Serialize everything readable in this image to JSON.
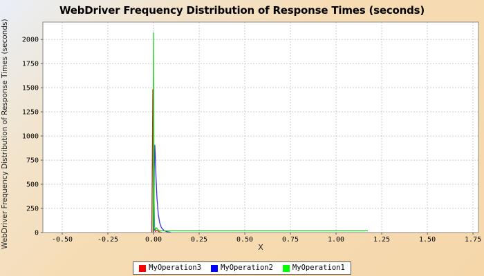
{
  "chart_data": {
    "type": "line",
    "title": "WebDriver Frequency Distribution of Response Times (seconds)",
    "xlabel": "X",
    "ylabel": "WebDriver Frequency Distribution of Response Times (seconds)",
    "xlim": [
      -0.606,
      1.78
    ],
    "ylim": [
      0,
      2180
    ],
    "grid": true,
    "grid_color": "#cccccc",
    "plot_background": "#ffffff",
    "plot_border_color": "#888888",
    "tick_color": "#555555",
    "x_ticks": [
      {
        "v": -0.5,
        "label": "-0.50"
      },
      {
        "v": -0.25,
        "label": "-0.25"
      },
      {
        "v": 0.0,
        "label": "0.00"
      },
      {
        "v": 0.25,
        "label": "0.25"
      },
      {
        "v": 0.5,
        "label": "0.50"
      },
      {
        "v": 0.75,
        "label": "0.75"
      },
      {
        "v": 1.0,
        "label": "1.00"
      },
      {
        "v": 1.25,
        "label": "1.25"
      },
      {
        "v": 1.5,
        "label": "1.50"
      },
      {
        "v": 1.75,
        "label": "1.75"
      }
    ],
    "y_ticks": [
      {
        "v": 0,
        "label": "0"
      },
      {
        "v": 250,
        "label": "250"
      },
      {
        "v": 500,
        "label": "500"
      },
      {
        "v": 750,
        "label": "750"
      },
      {
        "v": 1000,
        "label": "1000"
      },
      {
        "v": 1250,
        "label": "1250"
      },
      {
        "v": 1500,
        "label": "1500"
      },
      {
        "v": 1750,
        "label": "1750"
      },
      {
        "v": 2000,
        "label": "2000"
      }
    ],
    "legend": {
      "position": "bottom",
      "items": [
        {
          "label": "MyOperation3",
          "color": "#ff0000"
        },
        {
          "label": "MyOperation2",
          "color": "#0000ff"
        },
        {
          "label": "MyOperation1",
          "color": "#00ff00"
        }
      ]
    },
    "series": [
      {
        "name": "MyOperation3",
        "line_color": "#cc2222",
        "peak": {
          "x": 0.0,
          "y": 1480
        },
        "points": [
          [
            -0.009,
            0
          ],
          [
            -0.004,
            1480
          ],
          [
            0.0,
            50
          ],
          [
            0.01,
            12
          ],
          [
            0.02,
            22
          ],
          [
            0.032,
            6
          ],
          [
            0.048,
            1
          ]
        ]
      },
      {
        "name": "MyOperation2",
        "line_color": "#3333dd",
        "peak": {
          "x": 0.01,
          "y": 905
        },
        "points": [
          [
            0.001,
            0
          ],
          [
            0.004,
            650
          ],
          [
            0.007,
            905
          ],
          [
            0.01,
            800
          ],
          [
            0.014,
            560
          ],
          [
            0.019,
            360
          ],
          [
            0.026,
            190
          ],
          [
            0.034,
            100
          ],
          [
            0.044,
            48
          ],
          [
            0.058,
            20
          ],
          [
            0.075,
            8
          ],
          [
            0.095,
            2
          ]
        ]
      },
      {
        "name": "MyOperation1",
        "line_color": "#22cc22",
        "peak": {
          "x": 0.0,
          "y": 2070
        },
        "points": [
          [
            -0.002,
            0
          ],
          [
            0.0,
            2070
          ],
          [
            0.003,
            350
          ],
          [
            0.006,
            60
          ],
          [
            0.01,
            25
          ],
          [
            0.016,
            50
          ],
          [
            0.022,
            35
          ],
          [
            0.032,
            18
          ],
          [
            1.174,
            18
          ]
        ]
      }
    ]
  }
}
